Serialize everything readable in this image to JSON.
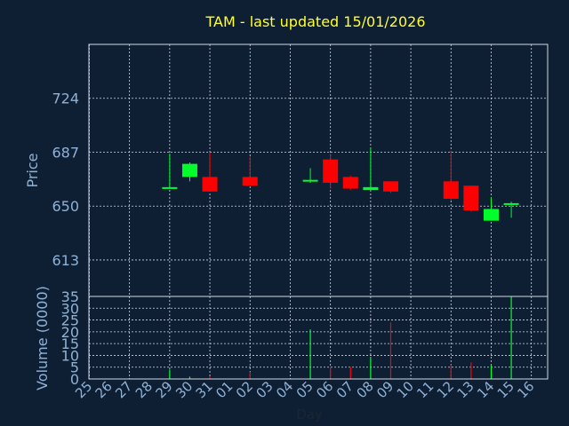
{
  "chart_data": {
    "type": "candlestick",
    "title": "TAM - last updated 15/01/2026",
    "price_panel": {
      "ylabel": "Price",
      "yticks": [
        613,
        650,
        687,
        724
      ],
      "ylim": [
        588,
        761
      ]
    },
    "volume_panel": {
      "ylabel": "Volume (0000)",
      "yticks": [
        0,
        5,
        10,
        15,
        20,
        25,
        30,
        35
      ],
      "ylim": [
        0,
        35
      ]
    },
    "xlabel": "Day",
    "xticks": [
      "25",
      "26",
      "27",
      "28",
      "29",
      "30",
      "31",
      "01",
      "02",
      "03",
      "04",
      "05",
      "06",
      "07",
      "08",
      "09",
      "10",
      "11",
      "12",
      "13",
      "14",
      "15",
      "16"
    ],
    "candles": [
      {
        "day": "29",
        "open": 662,
        "high": 686,
        "low": 662,
        "close": 663,
        "volume": 4
      },
      {
        "day": "30",
        "open": 670,
        "high": 680,
        "low": 667,
        "close": 679,
        "volume": 1
      },
      {
        "day": "31",
        "open": 670,
        "high": 687,
        "low": 660,
        "close": 660,
        "volume": 1
      },
      {
        "day": "02",
        "open": 670,
        "high": 684,
        "low": 664,
        "close": 664,
        "volume": 3
      },
      {
        "day": "05",
        "open": 667,
        "high": 676,
        "low": 666,
        "close": 668,
        "volume": 21
      },
      {
        "day": "06",
        "open": 682,
        "high": 686,
        "low": 662,
        "close": 666,
        "volume": 5
      },
      {
        "day": "07",
        "open": 670,
        "high": 671,
        "low": 661,
        "close": 662,
        "volume": 5
      },
      {
        "day": "08",
        "open": 661,
        "high": 690,
        "low": 661,
        "close": 663,
        "volume": 9
      },
      {
        "day": "09",
        "open": 667,
        "high": 667,
        "low": 659,
        "close": 660,
        "volume": 24
      },
      {
        "day": "12",
        "open": 667,
        "high": 688,
        "low": 654,
        "close": 655,
        "volume": 6
      },
      {
        "day": "13",
        "open": 664,
        "high": 664,
        "low": 646,
        "close": 647,
        "volume": 7
      },
      {
        "day": "14",
        "open": 640,
        "high": 656,
        "low": 640,
        "close": 648,
        "volume": 6
      },
      {
        "day": "15",
        "open": 651,
        "high": 653,
        "low": 642,
        "close": 652,
        "volume": 35
      }
    ],
    "colors": {
      "up": "#00ff2a",
      "down": "#ff0000",
      "background": "#0f1f33",
      "grid": "#cfd8e6",
      "label": "#8fb2d6",
      "title": "#ffff33"
    },
    "grid": true
  }
}
